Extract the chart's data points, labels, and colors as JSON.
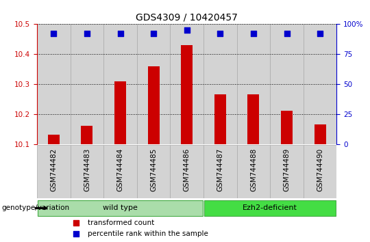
{
  "title": "GDS4309 / 10420457",
  "samples": [
    "GSM744482",
    "GSM744483",
    "GSM744484",
    "GSM744485",
    "GSM744486",
    "GSM744487",
    "GSM744488",
    "GSM744489",
    "GSM744490"
  ],
  "transformed_counts": [
    10.13,
    10.16,
    10.31,
    10.36,
    10.43,
    10.265,
    10.265,
    10.21,
    10.165
  ],
  "percentile_ranks": [
    92,
    92,
    92,
    92,
    95,
    92,
    92,
    92,
    92
  ],
  "ylim": [
    10.1,
    10.5
  ],
  "yticks": [
    10.1,
    10.2,
    10.3,
    10.4,
    10.5
  ],
  "right_yticks": [
    0,
    25,
    50,
    75,
    100
  ],
  "right_ylabels": [
    "0",
    "25",
    "50",
    "75",
    "100%"
  ],
  "bar_color": "#cc0000",
  "dot_color": "#0000cd",
  "groups": [
    {
      "label": "wild type",
      "start": 0,
      "end": 5,
      "color": "#aaddaa"
    },
    {
      "label": "Ezh2-deficient",
      "start": 5,
      "end": 9,
      "color": "#44dd44"
    }
  ],
  "group_label": "genotype/variation",
  "legend_items": [
    {
      "color": "#cc0000",
      "label": "transformed count"
    },
    {
      "color": "#0000cd",
      "label": "percentile rank within the sample"
    }
  ],
  "tick_label_color": "#cc0000",
  "right_tick_color": "#0000cd",
  "title_fontsize": 10,
  "tick_fontsize": 7.5,
  "background_color": "#ffffff",
  "sample_bg": "#d3d3d3",
  "sample_edge": "#aaaaaa"
}
